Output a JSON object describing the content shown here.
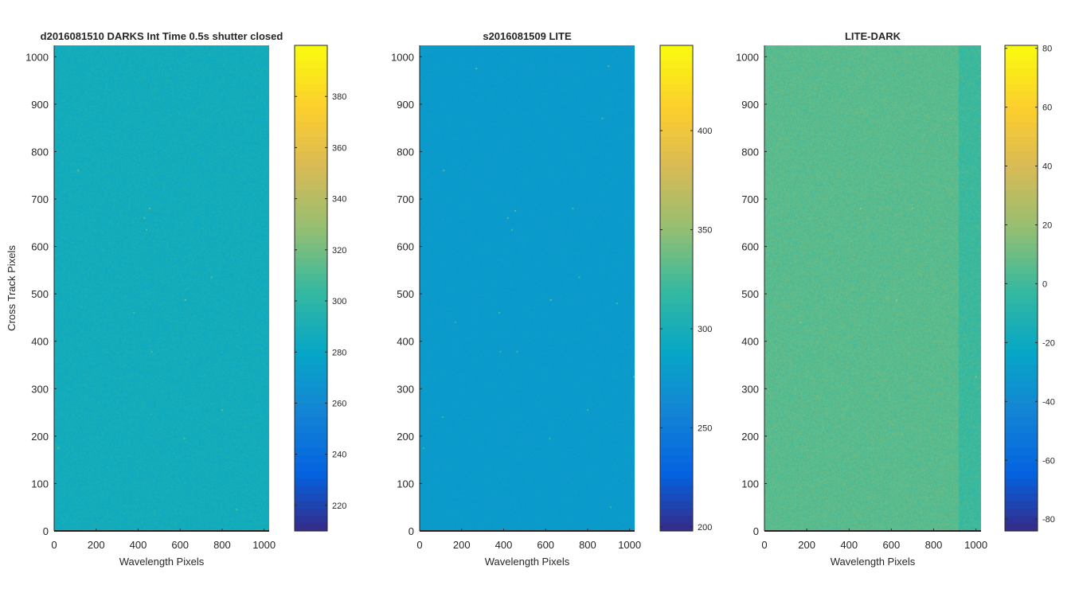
{
  "chart_data": [
    {
      "type": "heatmap",
      "title": "d2016081510  DARKS   Int Time 0.5s   shutter closed",
      "xlabel": "Wavelength Pixels",
      "ylabel": "Cross Track Pixels",
      "xlim": [
        0,
        1024
      ],
      "ylim": [
        0,
        1024
      ],
      "xticks": [
        "0",
        "200",
        "400",
        "600",
        "800",
        "1000"
      ],
      "yticks": [
        "0",
        "100",
        "200",
        "300",
        "400",
        "500",
        "600",
        "700",
        "800",
        "900",
        "1000"
      ],
      "colormap": "parula",
      "colorbar": {
        "range": [
          210,
          400
        ],
        "ticks": [
          "220",
          "240",
          "260",
          "280",
          "300",
          "320",
          "340",
          "360",
          "380"
        ]
      },
      "image_mean": 287,
      "image_noise": 4,
      "hot_pixels": [
        {
          "x": 115,
          "y": 760,
          "v": 318
        },
        {
          "x": 430,
          "y": 660,
          "v": 318
        },
        {
          "x": 455,
          "y": 680,
          "v": 316
        },
        {
          "x": 440,
          "y": 635,
          "v": 314
        },
        {
          "x": 750,
          "y": 535,
          "v": 316
        },
        {
          "x": 625,
          "y": 487,
          "v": 320
        },
        {
          "x": 380,
          "y": 460,
          "v": 312
        },
        {
          "x": 465,
          "y": 378,
          "v": 314
        },
        {
          "x": 20,
          "y": 175,
          "v": 316
        },
        {
          "x": 800,
          "y": 255,
          "v": 314
        },
        {
          "x": 620,
          "y": 195,
          "v": 312
        },
        {
          "x": 870,
          "y": 45,
          "v": 312
        }
      ]
    },
    {
      "type": "heatmap",
      "title": "s2016081509  LITE",
      "xlabel": "Wavelength Pixels",
      "ylabel": "",
      "xlim": [
        0,
        1024
      ],
      "ylim": [
        0,
        1024
      ],
      "xticks": [
        "0",
        "200",
        "400",
        "600",
        "800",
        "1000"
      ],
      "yticks": [
        "0",
        "100",
        "200",
        "300",
        "400",
        "500",
        "600",
        "700",
        "800",
        "900",
        "1000"
      ],
      "colormap": "parula",
      "colorbar": {
        "range": [
          198,
          443
        ],
        "ticks": [
          "200",
          "250",
          "300",
          "350",
          "400"
        ]
      },
      "image_mean": 278,
      "image_noise": 3,
      "hot_pixels": [
        {
          "x": 270,
          "y": 975,
          "v": 330
        },
        {
          "x": 900,
          "y": 980,
          "v": 330
        },
        {
          "x": 870,
          "y": 870,
          "v": 326
        },
        {
          "x": 115,
          "y": 760,
          "v": 330
        },
        {
          "x": 730,
          "y": 680,
          "v": 326
        },
        {
          "x": 420,
          "y": 660,
          "v": 330
        },
        {
          "x": 455,
          "y": 675,
          "v": 330
        },
        {
          "x": 440,
          "y": 635,
          "v": 324
        },
        {
          "x": 760,
          "y": 535,
          "v": 324
        },
        {
          "x": 625,
          "y": 487,
          "v": 334
        },
        {
          "x": 940,
          "y": 480,
          "v": 324
        },
        {
          "x": 170,
          "y": 440,
          "v": 320
        },
        {
          "x": 380,
          "y": 460,
          "v": 322
        },
        {
          "x": 465,
          "y": 378,
          "v": 322
        },
        {
          "x": 385,
          "y": 378,
          "v": 320
        },
        {
          "x": 1020,
          "y": 325,
          "v": 326
        },
        {
          "x": 800,
          "y": 255,
          "v": 320
        },
        {
          "x": 110,
          "y": 240,
          "v": 320
        },
        {
          "x": 620,
          "y": 195,
          "v": 318
        },
        {
          "x": 20,
          "y": 175,
          "v": 322
        },
        {
          "x": 910,
          "y": 50,
          "v": 320
        }
      ]
    },
    {
      "type": "heatmap",
      "title": "LITE-DARK",
      "xlabel": "Wavelength Pixels",
      "ylabel": "",
      "xlim": [
        0,
        1024
      ],
      "ylim": [
        0,
        1024
      ],
      "xticks": [
        "0",
        "200",
        "400",
        "600",
        "800",
        "1000"
      ],
      "yticks": [
        "0",
        "100",
        "200",
        "300",
        "400",
        "500",
        "600",
        "700",
        "800",
        "900",
        "1000"
      ],
      "colormap": "parula",
      "colorbar": {
        "range": [
          -84,
          81
        ],
        "ticks": [
          "-80",
          "-60",
          "-40",
          "-20",
          "0",
          "20",
          "40",
          "60",
          "80"
        ]
      },
      "image_mean": 6,
      "image_noise": 4,
      "hot_pixels": [
        {
          "x": 455,
          "y": 680,
          "v": 24
        },
        {
          "x": 700,
          "y": 680,
          "v": 22
        },
        {
          "x": 625,
          "y": 487,
          "v": 24
        },
        {
          "x": 170,
          "y": 440,
          "v": 22
        },
        {
          "x": 880,
          "y": 870,
          "v": 22
        },
        {
          "x": 1000,
          "y": 325,
          "v": 22
        }
      ]
    }
  ]
}
